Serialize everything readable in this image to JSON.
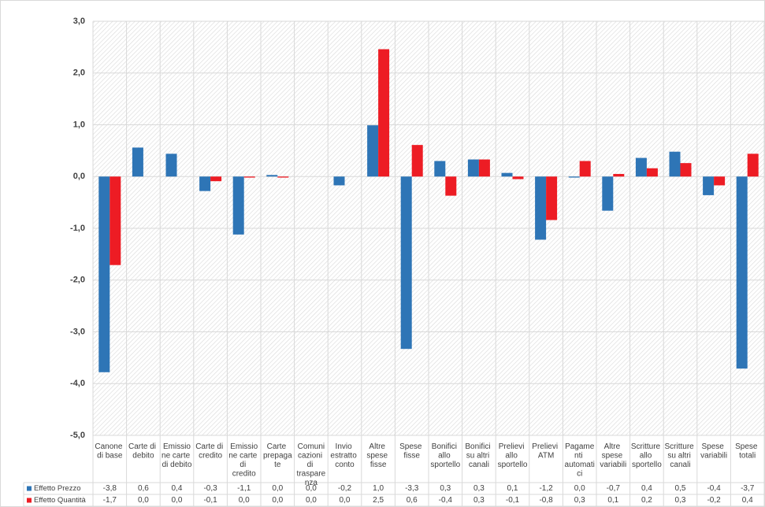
{
  "chart_data": {
    "type": "bar",
    "categories": [
      "Canone di base",
      "Carte di debito",
      "Emissione carte di debito",
      "Carte di credito",
      "Emissione carte di credito",
      "Carte prepagate",
      "Comunicazioni di trasparenza",
      "Invio estratto conto",
      "Altre spese fisse",
      "Spese fisse",
      "Bonifici allo sportello",
      "Bonifici su altri canali",
      "Prelievi allo sportello",
      "Prelievi ATM",
      "Pagamenti automatici",
      "Altre spese variabili",
      "Scritture allo sportello",
      "Scritture su altri canali",
      "Spese variabili",
      "Spese totali"
    ],
    "series": [
      {
        "name": "Effetto Prezzo",
        "color": "#2e75b6",
        "values": [
          -3.78,
          0.56,
          0.44,
          -0.28,
          -1.12,
          0.03,
          0,
          -0.17,
          0.99,
          -3.33,
          0.3,
          0.33,
          0.07,
          -1.22,
          -0.02,
          -0.66,
          0.36,
          0.48,
          -0.36,
          -3.71
        ],
        "value_labels": [
          "-3,8",
          "0,6",
          "0,4",
          "-0,3",
          "-1,1",
          "0,0",
          "0,0",
          "-0,2",
          "1,0",
          "-3,3",
          "0,3",
          "0,3",
          "0,1",
          "-1,2",
          "0,0",
          "-0,7",
          "0,4",
          "0,5",
          "-0,4",
          "-3,7"
        ]
      },
      {
        "name": "Effetto Quantità",
        "color": "#ed1c24",
        "values": [
          -1.71,
          0,
          0,
          -0.09,
          -0.02,
          -0.02,
          0,
          0,
          2.46,
          0.61,
          -0.37,
          0.33,
          -0.05,
          -0.84,
          0.3,
          0.05,
          0.16,
          0.26,
          -0.17,
          0.44
        ],
        "value_labels": [
          "-1,7",
          "0,0",
          "0,0",
          "-0,1",
          "0,0",
          "0,0",
          "0,0",
          "0,0",
          "2,5",
          "0,6",
          "-0,4",
          "0,3",
          "-0,1",
          "-0,8",
          "0,3",
          "0,1",
          "0,2",
          "0,3",
          "-0,2",
          "0,4"
        ]
      }
    ],
    "ylim": [
      -5,
      3
    ],
    "yticks": [
      {
        "value": -5,
        "label": "-5,0"
      },
      {
        "value": -4,
        "label": "-4,0"
      },
      {
        "value": -3,
        "label": "-3,0"
      },
      {
        "value": -2,
        "label": "-2,0"
      },
      {
        "value": -1,
        "label": "-1,0"
      },
      {
        "value": 0,
        "label": "0,0"
      },
      {
        "value": 1,
        "label": "1,0"
      },
      {
        "value": 2,
        "label": "2,0"
      },
      {
        "value": 3,
        "label": "3,0"
      }
    ],
    "grid": true,
    "data_table": true
  }
}
